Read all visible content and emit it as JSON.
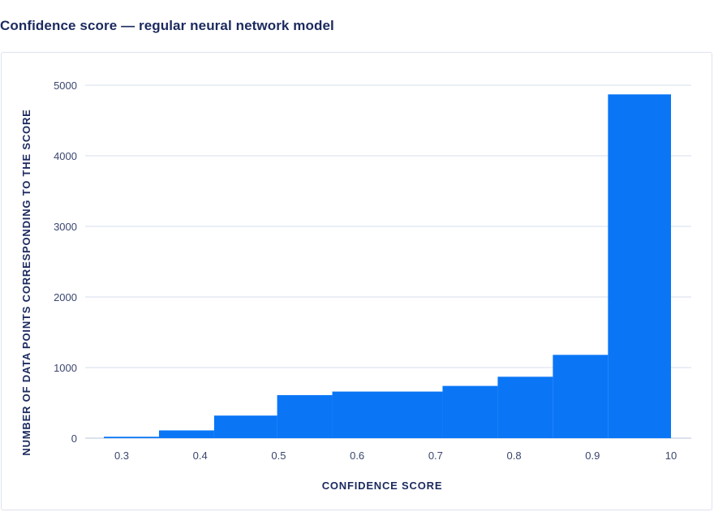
{
  "chart_data": {
    "type": "bar",
    "title": "Confidence score — regular neural network model",
    "xlabel": "CONFIDENCE SCORE",
    "ylabel": "NUMBER OF DATA POINTS CORRESPONDING TO THE SCORE",
    "x_tick_labels": [
      "0.3",
      "0.4",
      "0.5",
      "0.6",
      "0.7",
      "0.8",
      "0.9",
      "10"
    ],
    "y_ticks": [
      0,
      1000,
      2000,
      3000,
      4000,
      5000
    ],
    "ylim": [
      0,
      5000
    ],
    "grid": true,
    "bar_color": "#0a76f6",
    "bins": [
      {
        "from": 0.28,
        "to": 0.35,
        "value": 20
      },
      {
        "from": 0.35,
        "to": 0.42,
        "value": 110
      },
      {
        "from": 0.42,
        "to": 0.5,
        "value": 320
      },
      {
        "from": 0.5,
        "to": 0.57,
        "value": 610
      },
      {
        "from": 0.57,
        "to": 0.71,
        "value": 660
      },
      {
        "from": 0.71,
        "to": 0.78,
        "value": 740
      },
      {
        "from": 0.78,
        "to": 0.85,
        "value": 870
      },
      {
        "from": 0.85,
        "to": 0.92,
        "value": 1180
      },
      {
        "from": 0.92,
        "to": 1.0,
        "value": 4870
      }
    ]
  }
}
